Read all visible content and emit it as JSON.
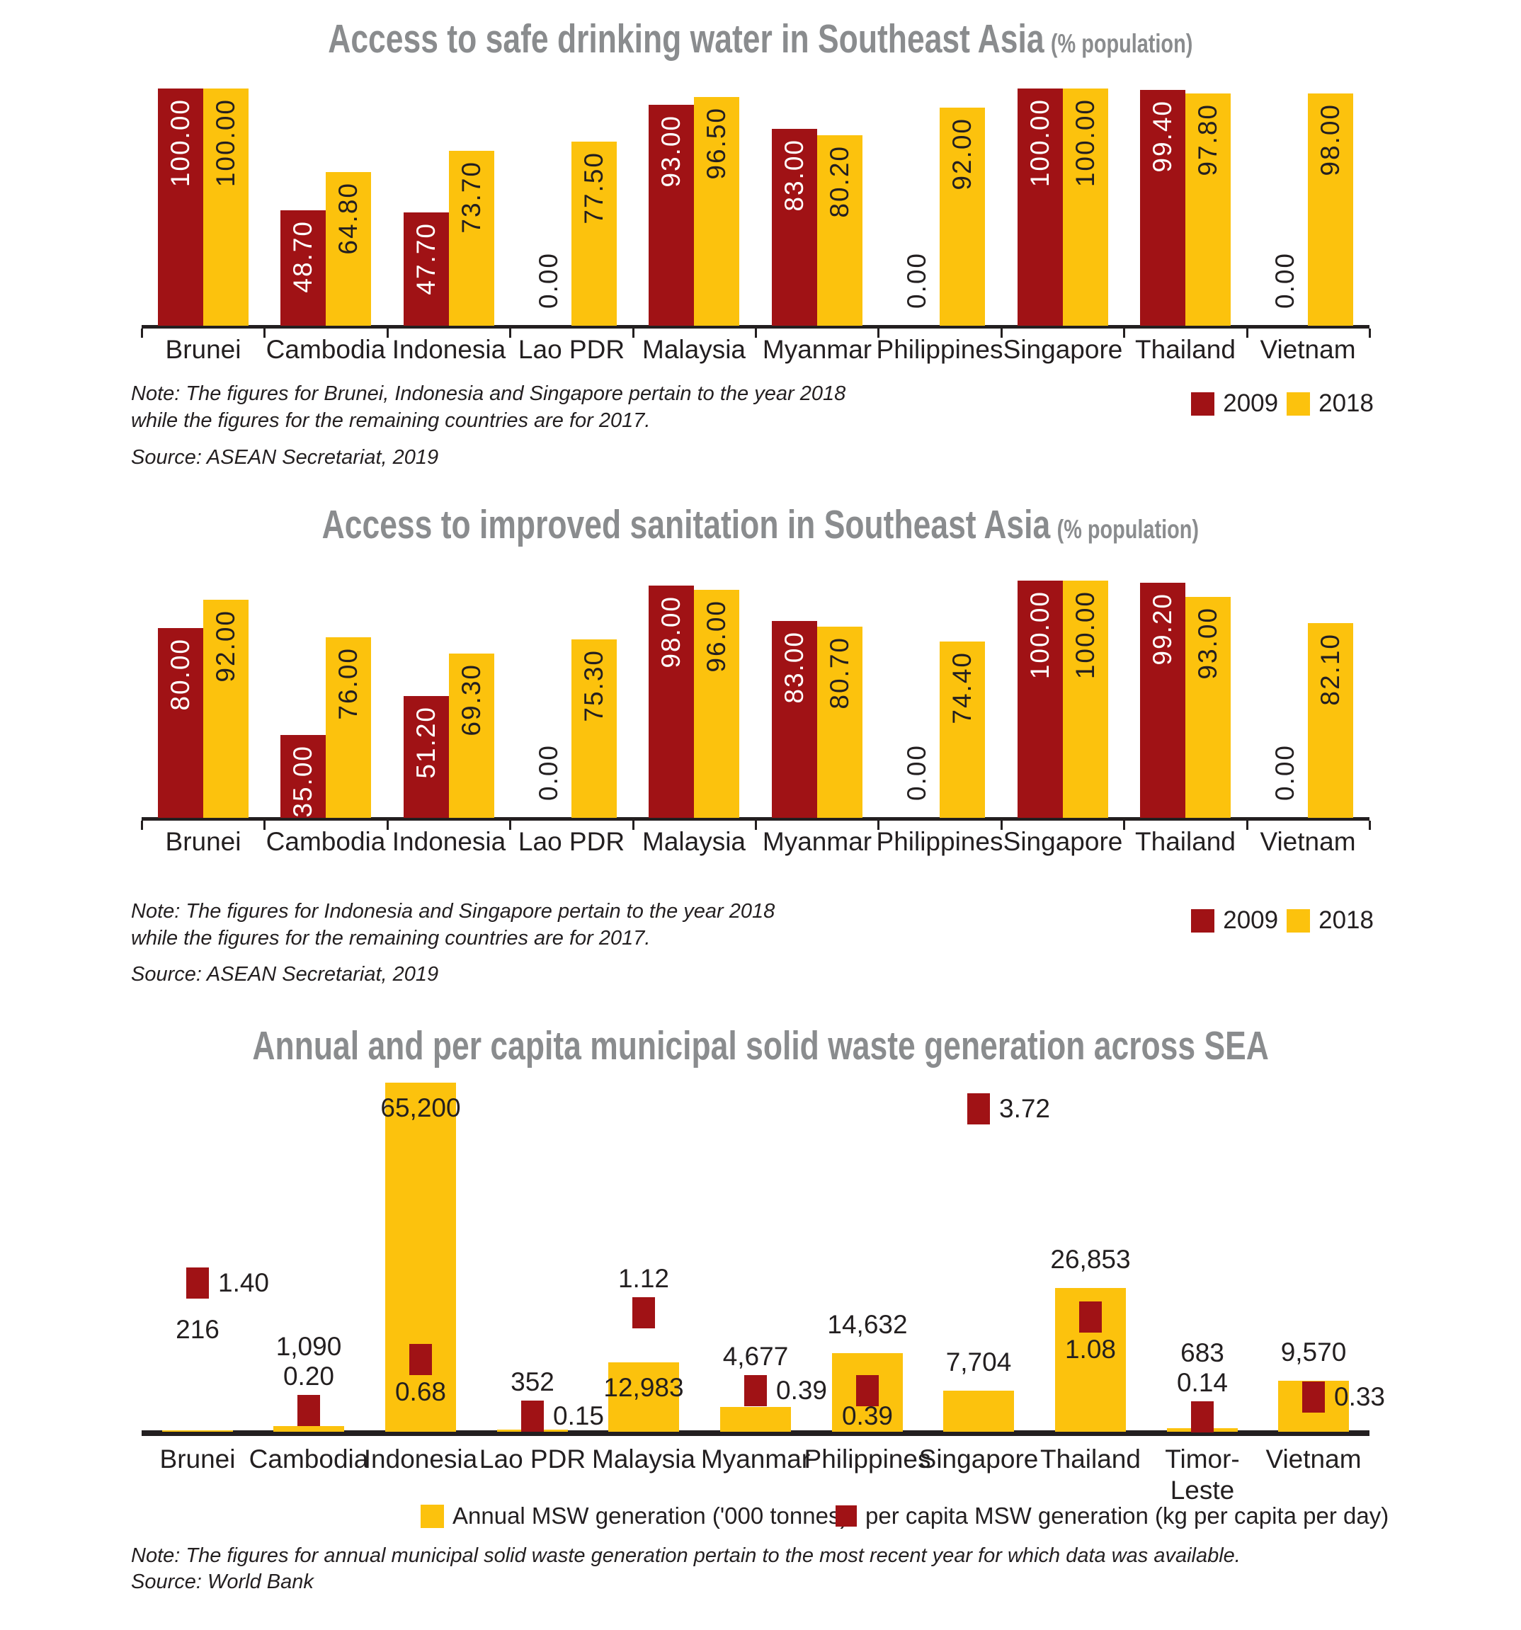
{
  "colors": {
    "series_2009": "#A01215",
    "series_2018": "#FCC20D",
    "bar_annual": "#FCC20D",
    "marker_per_capita": "#A01215",
    "title_gray": "#8A8C8E",
    "text_dark": "#231F20",
    "axis": "#231F20",
    "label_on_red": "#FFFFFF",
    "label_on_yellow": "#231F20"
  },
  "chart_data": [
    {
      "type": "bar",
      "title": "Access to safe drinking water in Southeast Asia",
      "subtitle": "(% population)",
      "categories": [
        "Brunei",
        "Cambodia",
        "Indonesia",
        "Lao PDR",
        "Malaysia",
        "Myanmar",
        "Philippines",
        "Singapore",
        "Thailand",
        "Vietnam"
      ],
      "series": [
        {
          "name": "2009",
          "color": "#A01215",
          "values": [
            100.0,
            48.7,
            47.7,
            0.0,
            93.0,
            83.0,
            0.0,
            100.0,
            99.4,
            0.0
          ]
        },
        {
          "name": "2018",
          "color": "#FCC20D",
          "values": [
            100.0,
            64.8,
            73.7,
            77.5,
            96.5,
            80.2,
            92.0,
            100.0,
            97.8,
            98.0
          ]
        }
      ],
      "ylim": [
        0,
        100
      ],
      "grid": false,
      "value_axis_hidden": true,
      "value_label_format": "2dp",
      "legend_position": "bottom-right",
      "note_line1": "Note: The figures for Brunei, Indonesia and Singapore pertain to the year 2018",
      "note_line2": "while the figures for the remaining countries are for 2017.",
      "source": "Source: ASEAN Secretariat, 2019"
    },
    {
      "type": "bar",
      "title": "Access to improved sanitation in Southeast Asia",
      "subtitle": "(% population)",
      "categories": [
        "Brunei",
        "Cambodia",
        "Indonesia",
        "Lao PDR",
        "Malaysia",
        "Myanmar",
        "Philippines",
        "Singapore",
        "Thailand",
        "Vietnam"
      ],
      "series": [
        {
          "name": "2009",
          "color": "#A01215",
          "values": [
            80.0,
            35.0,
            51.2,
            0.0,
            98.0,
            83.0,
            0.0,
            100.0,
            99.2,
            0.0
          ]
        },
        {
          "name": "2018",
          "color": "#FCC20D",
          "values": [
            92.0,
            76.0,
            69.3,
            75.3,
            96.0,
            80.7,
            74.4,
            100.0,
            93.0,
            82.1
          ]
        }
      ],
      "ylim": [
        0,
        100
      ],
      "grid": false,
      "value_axis_hidden": true,
      "value_label_format": "2dp",
      "legend_position": "bottom-right",
      "note_line1": "Note: The figures for Indonesia and Singapore pertain to the year 2018",
      "note_line2": "while the figures for the remaining countries are for 2017.",
      "source": "Source: ASEAN Secretariat, 2019"
    },
    {
      "type": "bar",
      "title": "Annual and per capita municipal solid waste generation across SEA",
      "subtitle": "",
      "categories": [
        "Brunei",
        "Cambodia",
        "Indonesia",
        "Lao PDR",
        "Malaysia",
        "Myanmar",
        "Philippines",
        "Singapore",
        "Thailand",
        "Timor-Leste",
        "Vietnam"
      ],
      "series": [
        {
          "name": "Annual MSW generation ('000 tonnes)",
          "kind": "bar",
          "color": "#FCC20D",
          "values": [
            216,
            1090,
            65200,
            352,
            12983,
            4677,
            14632,
            7704,
            26853,
            683,
            9570
          ]
        },
        {
          "name": "per capita MSW generation (kg per capita per day)",
          "kind": "point",
          "color": "#A01215",
          "values": [
            1.4,
            0.2,
            0.68,
            0.15,
            1.12,
            0.39,
            0.39,
            3.72,
            1.08,
            0.14,
            0.33
          ]
        }
      ],
      "bar_axis": [
        0,
        65200
      ],
      "marker_axis": [
        0,
        3.72
      ],
      "grid": false,
      "value_axis_hidden": true,
      "legend_position": "bottom-center",
      "bar_label_pos": [
        "below-marker",
        "stack",
        "inside",
        "above-marker",
        "inside",
        "above-marker",
        "above-bar",
        "above-bar",
        "above-bar",
        "stack",
        "above-bar"
      ],
      "marker_label_pos": [
        "right",
        "above",
        "below",
        "right",
        "above",
        "right",
        "below",
        "right",
        "below",
        "above",
        "right"
      ],
      "note_line1": "Note: The figures for annual municipal solid waste generation pertain to the most recent year for which data was available.",
      "source": "Source: World Bank"
    }
  ]
}
